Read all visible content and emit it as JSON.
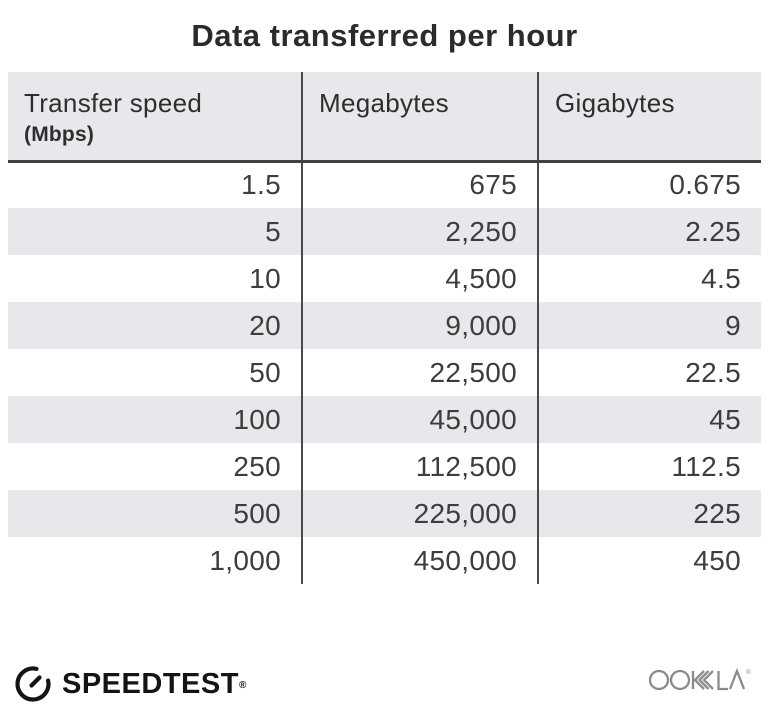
{
  "title": "Data transferred per hour",
  "table": {
    "columns": [
      {
        "label": "Transfer speed",
        "sublabel": "(Mbps)"
      },
      {
        "label": "Megabytes"
      },
      {
        "label": "Gigabytes"
      }
    ],
    "rows": [
      [
        "1.5",
        "675",
        "0.675"
      ],
      [
        "5",
        "2,250",
        "2.25"
      ],
      [
        "10",
        "4,500",
        "4.5"
      ],
      [
        "20",
        "9,000",
        "9"
      ],
      [
        "50",
        "22,500",
        "22.5"
      ],
      [
        "100",
        "45,000",
        "45"
      ],
      [
        "250",
        "112,500",
        "112.5"
      ],
      [
        "500",
        "225,000",
        "225"
      ],
      [
        "1,000",
        "450,000",
        "450"
      ]
    ]
  },
  "chart_data": {
    "type": "table",
    "title": "Data transferred per hour",
    "columns": [
      "Transfer speed (Mbps)",
      "Megabytes",
      "Gigabytes"
    ],
    "rows": [
      [
        1.5,
        675,
        0.675
      ],
      [
        5,
        2250,
        2.25
      ],
      [
        10,
        4500,
        4.5
      ],
      [
        20,
        9000,
        9
      ],
      [
        50,
        22500,
        22.5
      ],
      [
        100,
        45000,
        45
      ],
      [
        250,
        112500,
        112.5
      ],
      [
        500,
        225000,
        225
      ],
      [
        1000,
        450000,
        450
      ]
    ],
    "layout": {
      "zebra_stripes": true,
      "column_dividers": true,
      "header_rule": true
    }
  },
  "footer": {
    "speedtest": {
      "label": "SPEEDTEST",
      "registered": "®",
      "icon": "speedometer-gauge-icon"
    },
    "ookla": {
      "label": "OOKLA",
      "registered": "®"
    }
  },
  "colors": {
    "header_bg": "#e8e7ec",
    "stripe_bg": "#e8e7ec",
    "divider": "#4a4a4a",
    "header_rule": "#414141",
    "title_text": "#2b2b2b",
    "header_text": "#2e2e2e",
    "body_text": "#3d3d3d",
    "speedtest_text": "#141414",
    "ookla_gray": "#8b8b8b"
  }
}
